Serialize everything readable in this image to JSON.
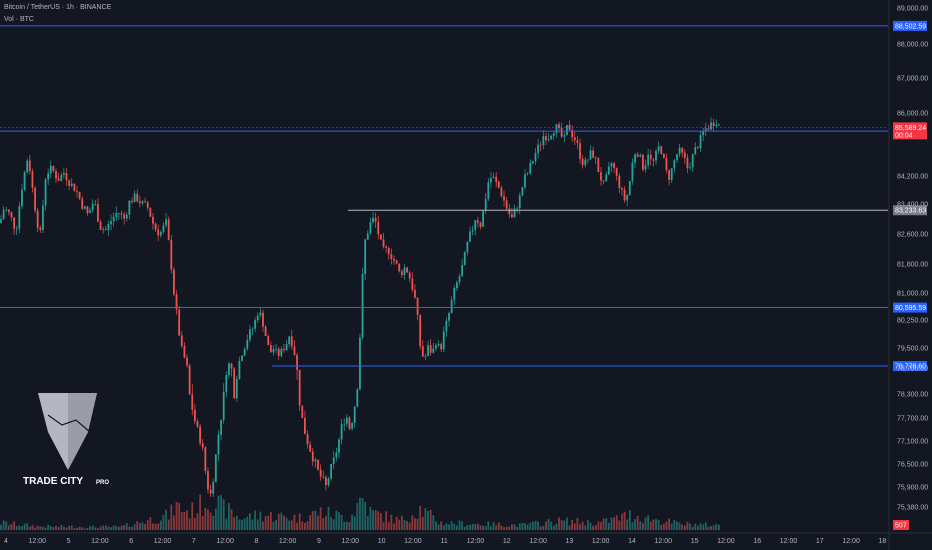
{
  "header": {
    "symbol_line": "Bitcoin / TetherUS · 1h · BINANCE",
    "volume_line": "Vol · BTC"
  },
  "brand": {
    "name": "TRADE CITY",
    "suffix": "PRO"
  },
  "colors": {
    "background": "#131722",
    "bull": "#26a69a",
    "bear": "#ef5350",
    "level_line": "#2962ff",
    "level_tag": "#2962ff",
    "gray_line": "#b2b5be",
    "price_tag": "#f23645"
  },
  "chart_data": {
    "type": "candlestick",
    "symbol": "Bitcoin / TetherUS",
    "interval": "1h",
    "exchange": "BINANCE",
    "ylim": [
      75150,
      89100
    ],
    "y_ticks": [
      "89,000.00",
      "88,000.00",
      "87,000.00",
      "86,000.00",
      "84,200.00",
      "83,400.00",
      "82,600.00",
      "81,800.00",
      "81,000.00",
      "80,250.00",
      "79,500.00",
      "78,700.00",
      "78,300.00",
      "77,700.00",
      "77,100.00",
      "76,500.00",
      "75,900.00",
      "75,380.00"
    ],
    "x_ticks": [
      "4",
      "12:00",
      "5",
      "12:00",
      "6",
      "12:00",
      "7",
      "12:00",
      "8",
      "12:00",
      "9",
      "12:00",
      "10",
      "12:00",
      "11",
      "12:00",
      "12",
      "12:00",
      "13",
      "12:00",
      "14",
      "12:00",
      "15",
      "12:00",
      "16",
      "12:00",
      "17",
      "12:00",
      "18"
    ],
    "horizontal_levels": [
      {
        "price": 88502.59,
        "label": "88,502.59",
        "style": "blue"
      },
      {
        "price": 85482.29,
        "label": "85,482.29",
        "style": "blue"
      },
      {
        "price": 83233.63,
        "label": "83,233.63",
        "style": "gray"
      },
      {
        "price": 80595.59,
        "label": "80,595.59",
        "style": "blue"
      },
      {
        "price": 78778.6,
        "label": "78,778.60",
        "style": "blue"
      }
    ],
    "last_price": {
      "label": "85,589.24",
      "countdown": "00:04"
    },
    "volume_label": "507",
    "price_path": [
      [
        0,
        82900
      ],
      [
        4,
        83300
      ],
      [
        10,
        83100
      ],
      [
        16,
        82700
      ],
      [
        22,
        83900
      ],
      [
        28,
        84800
      ],
      [
        34,
        83500
      ],
      [
        40,
        82500
      ],
      [
        46,
        84300
      ],
      [
        52,
        84400
      ],
      [
        58,
        84100
      ],
      [
        64,
        84300
      ],
      [
        70,
        84000
      ],
      [
        76,
        83800
      ],
      [
        82,
        83400
      ],
      [
        88,
        83100
      ],
      [
        94,
        83500
      ],
      [
        100,
        82800
      ],
      [
        106,
        82700
      ],
      [
        112,
        83000
      ],
      [
        118,
        83200
      ],
      [
        124,
        83000
      ],
      [
        130,
        83500
      ],
      [
        136,
        83600
      ],
      [
        142,
        83400
      ],
      [
        148,
        83300
      ],
      [
        154,
        82800
      ],
      [
        160,
        82600
      ],
      [
        166,
        82900
      ],
      [
        170,
        82100
      ],
      [
        174,
        81000
      ],
      [
        178,
        80100
      ],
      [
        182,
        79400
      ],
      [
        186,
        78900
      ],
      [
        190,
        78200
      ],
      [
        196,
        77500
      ],
      [
        202,
        77000
      ],
      [
        206,
        76200
      ],
      [
        210,
        75600
      ],
      [
        214,
        76300
      ],
      [
        218,
        77200
      ],
      [
        222,
        77900
      ],
      [
        226,
        78700
      ],
      [
        230,
        78900
      ],
      [
        234,
        78300
      ],
      [
        238,
        78800
      ],
      [
        242,
        79300
      ],
      [
        246,
        79700
      ],
      [
        250,
        79900
      ],
      [
        254,
        80100
      ],
      [
        258,
        80500
      ],
      [
        262,
        80300
      ],
      [
        266,
        79800
      ],
      [
        270,
        79300
      ],
      [
        274,
        79500
      ],
      [
        278,
        79200
      ],
      [
        282,
        79400
      ],
      [
        286,
        79600
      ],
      [
        290,
        79900
      ],
      [
        294,
        79400
      ],
      [
        298,
        78400
      ],
      [
        302,
        77700
      ],
      [
        306,
        77200
      ],
      [
        310,
        76900
      ],
      [
        314,
        76600
      ],
      [
        318,
        76300
      ],
      [
        322,
        76100
      ],
      [
        326,
        75900
      ],
      [
        330,
        76300
      ],
      [
        334,
        76600
      ],
      [
        338,
        77000
      ],
      [
        342,
        77500
      ],
      [
        346,
        77800
      ],
      [
        350,
        77400
      ],
      [
        354,
        77900
      ],
      [
        358,
        78600
      ],
      [
        361,
        80500
      ],
      [
        364,
        82300
      ],
      [
        368,
        82700
      ],
      [
        372,
        83000
      ],
      [
        376,
        82900
      ],
      [
        380,
        82400
      ],
      [
        384,
        82100
      ],
      [
        388,
        82200
      ],
      [
        392,
        82000
      ],
      [
        396,
        81800
      ],
      [
        400,
        81500
      ],
      [
        404,
        81700
      ],
      [
        408,
        81600
      ],
      [
        412,
        81200
      ],
      [
        416,
        80700
      ],
      [
        420,
        79600
      ],
      [
        424,
        79000
      ],
      [
        428,
        79500
      ],
      [
        432,
        79300
      ],
      [
        436,
        79700
      ],
      [
        440,
        79400
      ],
      [
        444,
        79900
      ],
      [
        448,
        80300
      ],
      [
        452,
        80800
      ],
      [
        456,
        81200
      ],
      [
        460,
        81500
      ],
      [
        464,
        81900
      ],
      [
        468,
        82400
      ],
      [
        472,
        82700
      ],
      [
        476,
        83100
      ],
      [
        480,
        82800
      ],
      [
        484,
        83300
      ],
      [
        488,
        84000
      ],
      [
        492,
        84200
      ],
      [
        496,
        84000
      ],
      [
        500,
        83800
      ],
      [
        504,
        83500
      ],
      [
        508,
        83200
      ],
      [
        512,
        83000
      ],
      [
        516,
        83300
      ],
      [
        520,
        83600
      ],
      [
        524,
        84100
      ],
      [
        528,
        84300
      ],
      [
        532,
        84600
      ],
      [
        536,
        84900
      ],
      [
        540,
        85100
      ],
      [
        544,
        85400
      ],
      [
        548,
        85300
      ],
      [
        552,
        85500
      ],
      [
        556,
        85600
      ],
      [
        560,
        85400
      ],
      [
        564,
        85200
      ],
      [
        568,
        85700
      ],
      [
        572,
        85400
      ],
      [
        576,
        85200
      ],
      [
        580,
        84800
      ],
      [
        584,
        84500
      ],
      [
        588,
        84700
      ],
      [
        592,
        84900
      ],
      [
        596,
        84600
      ],
      [
        600,
        84200
      ],
      [
        604,
        83900
      ],
      [
        608,
        84300
      ],
      [
        612,
        84600
      ],
      [
        616,
        84200
      ],
      [
        620,
        83900
      ],
      [
        624,
        83500
      ],
      [
        628,
        83700
      ],
      [
        632,
        84500
      ],
      [
        636,
        85000
      ],
      [
        640,
        84700
      ],
      [
        644,
        84400
      ],
      [
        648,
        84900
      ],
      [
        652,
        84500
      ],
      [
        656,
        84800
      ],
      [
        660,
        85100
      ],
      [
        664,
        84600
      ],
      [
        668,
        84100
      ],
      [
        672,
        84400
      ],
      [
        676,
        84800
      ],
      [
        680,
        84900
      ],
      [
        684,
        84700
      ],
      [
        688,
        84400
      ],
      [
        692,
        84700
      ],
      [
        696,
        85000
      ],
      [
        700,
        85200
      ],
      [
        704,
        85500
      ],
      [
        708,
        85600
      ],
      [
        712,
        85700
      ],
      [
        716,
        85800
      ],
      [
        720,
        85589
      ]
    ],
    "volume_profile": [
      [
        0,
        0.12
      ],
      [
        40,
        0.06
      ],
      [
        120,
        0.05
      ],
      [
        170,
        0.25
      ],
      [
        175,
        0.4
      ],
      [
        190,
        0.3
      ],
      [
        210,
        0.5
      ],
      [
        220,
        0.4
      ],
      [
        240,
        0.2
      ],
      [
        260,
        0.25
      ],
      [
        300,
        0.2
      ],
      [
        320,
        0.3
      ],
      [
        350,
        0.2
      ],
      [
        362,
        0.55
      ],
      [
        370,
        0.3
      ],
      [
        400,
        0.15
      ],
      [
        420,
        0.35
      ],
      [
        440,
        0.12
      ],
      [
        480,
        0.1
      ],
      [
        520,
        0.08
      ],
      [
        560,
        0.15
      ],
      [
        600,
        0.12
      ],
      [
        630,
        0.25
      ],
      [
        680,
        0.1
      ],
      [
        720,
        0.08
      ]
    ]
  }
}
